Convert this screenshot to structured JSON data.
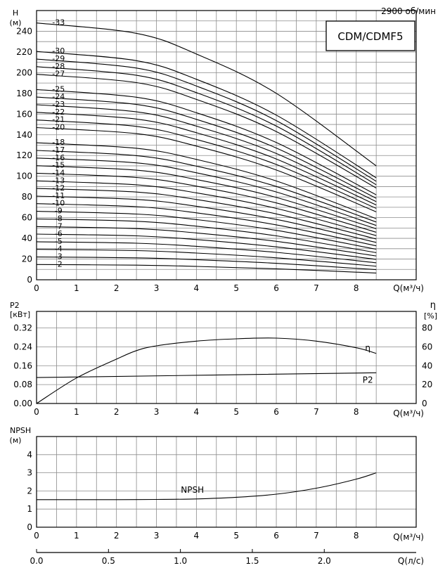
{
  "chart_data": [
    {
      "type": "line",
      "id": "head",
      "title": "CDM/CDMF5",
      "speed_label": "2900 об/мин",
      "ylabel": "H",
      "yunit": "(м)",
      "xlabel": "Q(м³/ч)",
      "xlim": [
        0,
        9.5
      ],
      "ylim": [
        0,
        260
      ],
      "xticks": [
        0,
        1,
        2,
        3,
        4,
        5,
        6,
        7,
        8
      ],
      "yticks": [
        0,
        20,
        40,
        60,
        80,
        100,
        120,
        140,
        160,
        180,
        200,
        220,
        240
      ],
      "x": [
        0,
        2.5,
        4,
        6,
        8.5
      ],
      "series": [
        {
          "name": "-2",
          "values": [
            14.7,
            14.1,
            12.9,
            10.6,
            6.5
          ]
        },
        {
          "name": "-3",
          "values": [
            22.0,
            21.2,
            19.4,
            15.9,
            9.8
          ]
        },
        {
          "name": "-4",
          "values": [
            29.4,
            28.2,
            25.8,
            21.2,
            13.1
          ]
        },
        {
          "name": "-5",
          "values": [
            36.7,
            35.3,
            32.3,
            26.5,
            16.4
          ]
        },
        {
          "name": "-6",
          "values": [
            44.1,
            42.4,
            38.8,
            31.8,
            19.7
          ]
        },
        {
          "name": "-7",
          "values": [
            51.4,
            49.4,
            45.2,
            37.1,
            23.0
          ]
        },
        {
          "name": "-8",
          "values": [
            58.8,
            56.5,
            51.7,
            42.4,
            26.2
          ]
        },
        {
          "name": "-9",
          "values": [
            66.1,
            63.5,
            58.1,
            47.7,
            29.5
          ]
        },
        {
          "name": "-10",
          "values": [
            73.5,
            70.6,
            64.6,
            53.0,
            32.8
          ]
        },
        {
          "name": "-11",
          "values": [
            80.8,
            77.6,
            71.0,
            58.3,
            36.1
          ]
        },
        {
          "name": "-12",
          "values": [
            88.2,
            84.7,
            77.5,
            63.6,
            39.4
          ]
        },
        {
          "name": "-13",
          "values": [
            95.5,
            91.7,
            83.9,
            68.9,
            42.6
          ]
        },
        {
          "name": "-14",
          "values": [
            102.9,
            98.8,
            90.4,
            74.2,
            45.9
          ]
        },
        {
          "name": "-15",
          "values": [
            110.2,
            105.8,
            96.8,
            79.5,
            49.2
          ]
        },
        {
          "name": "-16",
          "values": [
            117.6,
            112.9,
            103.3,
            84.8,
            52.5
          ]
        },
        {
          "name": "-17",
          "values": [
            124.9,
            119.9,
            109.7,
            90.1,
            55.8
          ]
        },
        {
          "name": "-18",
          "values": [
            132.3,
            127.0,
            116.2,
            95.4,
            59.0
          ]
        },
        {
          "name": "-20",
          "values": [
            147.0,
            141.1,
            129.1,
            106.0,
            65.6
          ]
        },
        {
          "name": "-21",
          "values": [
            154.3,
            148.1,
            135.5,
            111.3,
            68.9
          ]
        },
        {
          "name": "-22",
          "values": [
            161.7,
            155.2,
            142.0,
            116.6,
            72.2
          ]
        },
        {
          "name": "-23",
          "values": [
            169.0,
            162.2,
            148.4,
            121.9,
            75.4
          ]
        },
        {
          "name": "-24",
          "values": [
            176.4,
            169.3,
            154.9,
            127.2,
            78.7
          ]
        },
        {
          "name": "-25",
          "values": [
            183.7,
            176.3,
            161.3,
            132.5,
            82.0
          ]
        },
        {
          "name": "-27",
          "values": [
            198.4,
            190.4,
            174.2,
            143.1,
            88.6
          ]
        },
        {
          "name": "-28",
          "values": [
            205.8,
            197.5,
            180.7,
            148.4,
            91.8
          ]
        },
        {
          "name": "-29",
          "values": [
            213.1,
            204.5,
            187.1,
            153.7,
            95.1
          ]
        },
        {
          "name": "-30",
          "values": [
            220.5,
            211.6,
            193.6,
            159.0,
            98.4
          ]
        },
        {
          "name": "-33",
          "values": [
            248.0,
            238.0,
            218.0,
            180.0,
            110.0
          ]
        }
      ]
    },
    {
      "type": "line",
      "id": "power",
      "ylabel": "P2",
      "yunit": "[кВт]",
      "y2label": "η",
      "y2unit": "[%]",
      "xlabel": "Q(м³/ч)",
      "xlim": [
        0,
        9.5
      ],
      "ylim": [
        0,
        0.39
      ],
      "y2lim": [
        0,
        97.5
      ],
      "xticks": [
        0,
        1,
        2,
        3,
        4,
        5,
        6,
        7,
        8
      ],
      "yticks": [
        "0.00",
        "0.08",
        "0.16",
        "0.24",
        "0.32"
      ],
      "y2ticks": [
        0,
        20,
        40,
        60,
        80
      ],
      "series": [
        {
          "name": "η",
          "axis": "right",
          "x": [
            0,
            1,
            2,
            2.5,
            3,
            4,
            5,
            6,
            7,
            8,
            8.5
          ],
          "values": [
            0,
            27,
            47,
            56,
            61,
            66,
            68.5,
            69.2,
            66,
            59,
            53
          ]
        },
        {
          "name": "P2",
          "axis": "left",
          "x": [
            0,
            8.5
          ],
          "values": [
            0.11,
            0.13
          ]
        }
      ]
    },
    {
      "type": "line",
      "id": "npsh",
      "ylabel": "NPSH",
      "yunit": "(м)",
      "xlabel": "Q(м³/ч)",
      "x2label": "Q(л/с)",
      "xlim": [
        0,
        9.5
      ],
      "ylim": [
        0,
        5
      ],
      "xticks": [
        0,
        1,
        2,
        3,
        4,
        5,
        6,
        7,
        8
      ],
      "yticks": [
        0,
        1,
        2,
        3,
        4
      ],
      "x2ticks": [
        "0.0",
        "0.5",
        "1.0",
        "1.5",
        "2.0"
      ],
      "series": [
        {
          "name": "NPSH",
          "x": [
            0,
            1,
            2,
            3,
            4,
            5,
            6,
            7,
            8,
            8.5
          ],
          "values": [
            1.52,
            1.52,
            1.52,
            1.53,
            1.56,
            1.65,
            1.82,
            2.15,
            2.65,
            3.0
          ]
        }
      ]
    }
  ]
}
